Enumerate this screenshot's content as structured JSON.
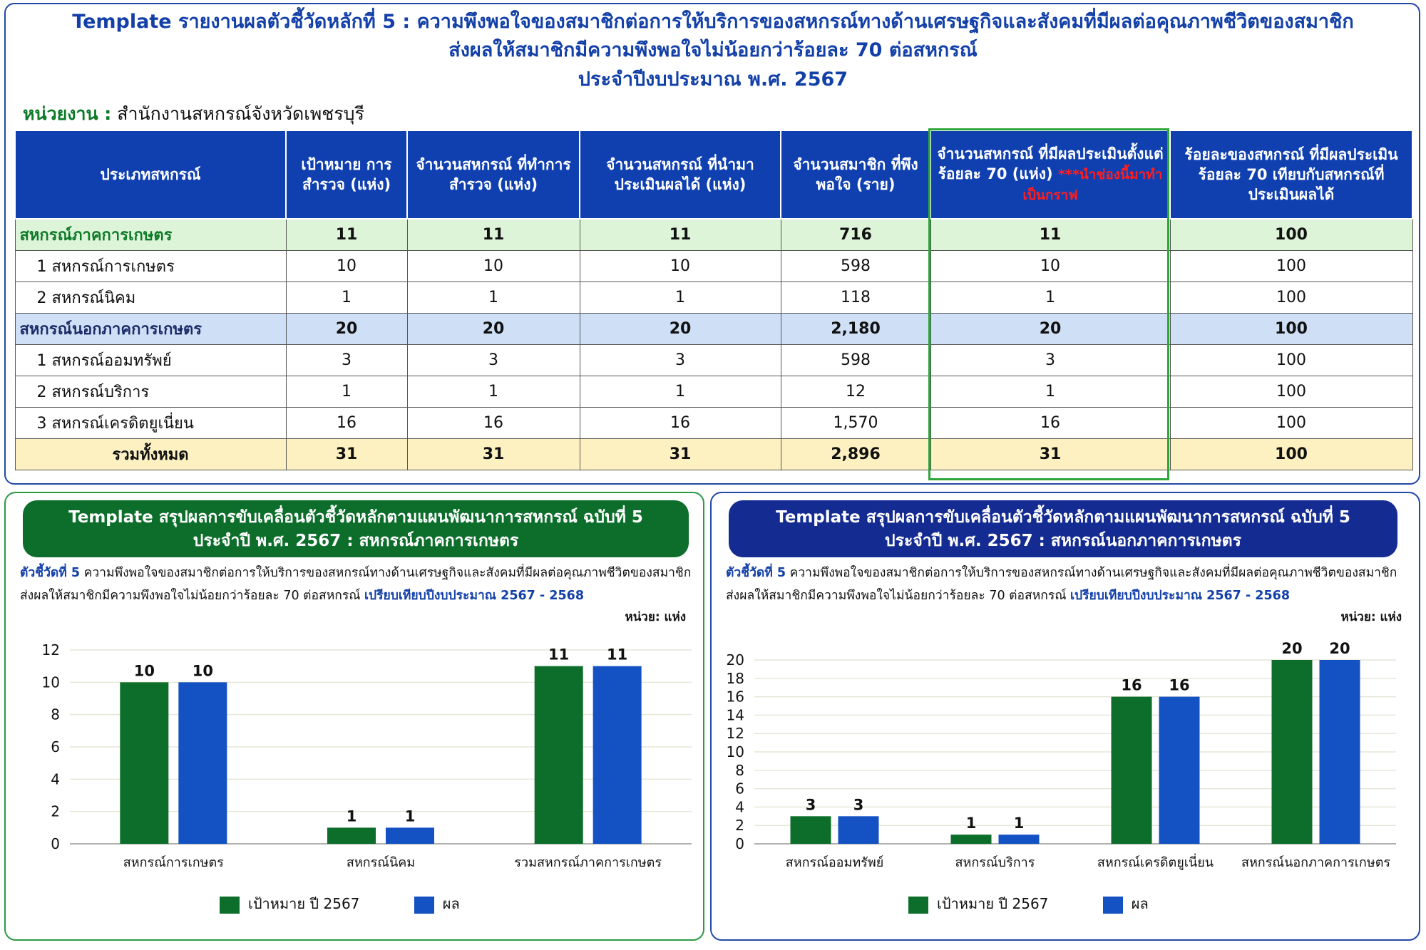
{
  "header": {
    "title_line1": "Template รายงานผลตัวชี้วัดหลักที่ 5 : ความพึงพอใจของสมาชิกต่อการให้บริการของสหกรณ์ทางด้านเศรษฐกิจและสังคมที่มีผลต่อคุณภาพชีวิตของสมาชิก",
    "title_line2": "ส่งผลให้สมาชิกมีความพึงพอใจไม่น้อยกว่าร้อยละ 70 ต่อสหกรณ์",
    "title_line3": "ประจำปีงบประมาณ พ.ศ. 2567",
    "unit_label": "หน่วยงาน :",
    "unit_value": "สำนักงานสหกรณ์จังหวัดเพชรบุรี"
  },
  "table": {
    "headers": {
      "col1": "ประเภทสหกรณ์",
      "col2": "เป้าหมาย การ สำรวจ (แห่ง)",
      "col3": "จำนวนสหกรณ์ ที่ทำการสำรวจ (แห่ง)",
      "col4": "จำนวนสหกรณ์ ที่นำมาประเมินผลได้ (แห่ง)",
      "col5": "จำนวนสมาชิก ที่พึงพอใจ (ราย)",
      "col6": "จำนวนสหกรณ์ ที่มีผลประเมินตั้งแต่ร้อยละ 70 (แห่ง)",
      "col6_note": "***นำช่องนี้มาทำเป็นกราฟ",
      "col7": "ร้อยละของสหกรณ์ ที่มีผลประเมินร้อยละ 70 เทียบกับสหกรณ์ที่ประเมินผลได้"
    },
    "rows": [
      {
        "type": "group-ag",
        "name": "สหกรณ์ภาคการเกษตร",
        "c2": "11",
        "c3": "11",
        "c4": "11",
        "c5": "716",
        "c6": "11",
        "c7": "100"
      },
      {
        "type": "item",
        "name": "1  สหกรณ์การเกษตร",
        "c2": "10",
        "c3": "10",
        "c4": "10",
        "c5": "598",
        "c6": "10",
        "c7": "100"
      },
      {
        "type": "item",
        "name": "2  สหกรณ์นิคม",
        "c2": "1",
        "c3": "1",
        "c4": "1",
        "c5": "118",
        "c6": "1",
        "c7": "100"
      },
      {
        "type": "group-nonag",
        "name": "สหกรณ์นอกภาคการเกษตร",
        "c2": "20",
        "c3": "20",
        "c4": "20",
        "c5": "2,180",
        "c6": "20",
        "c7": "100"
      },
      {
        "type": "item",
        "name": "1  สหกรณ์ออมทรัพย์",
        "c2": "3",
        "c3": "3",
        "c4": "3",
        "c5": "598",
        "c6": "3",
        "c7": "100"
      },
      {
        "type": "item",
        "name": "2  สหกรณ์บริการ",
        "c2": "1",
        "c3": "1",
        "c4": "1",
        "c5": "12",
        "c6": "1",
        "c7": "100"
      },
      {
        "type": "item",
        "name": "3  สหกรณ์เครดิตยูเนี่ยน",
        "c2": "16",
        "c3": "16",
        "c4": "16",
        "c5": "1,570",
        "c6": "16",
        "c7": "100"
      },
      {
        "type": "total",
        "name": "รวมทั้งหมด",
        "c2": "31",
        "c3": "31",
        "c4": "31",
        "c5": "2,896",
        "c6": "31",
        "c7": "100"
      }
    ]
  },
  "panels": {
    "left": {
      "banner1": "Template สรุปผลการขับเคลื่อนตัวชี้วัดหลักตามแผนพัฒนาการสหกรณ์ ฉบับที่ 5",
      "banner2": "ประจำปี พ.ศ. 2567 : สหกรณ์ภาคการเกษตร",
      "desc_key": "ตัวชี้วัดที่ 5",
      "desc_text1": " ความพึงพอใจของสมาชิกต่อการให้บริการของสหกรณ์ทางด้านเศรษฐกิจและสังคมที่มีผลต่อคุณภาพชีวิตของสมาชิก",
      "desc_text2": "ส่งผลให้สมาชิกมีความพึงพอใจไม่น้อยกว่าร้อยละ 70 ต่อสหกรณ์ ",
      "desc_key2": "เปรียบเทียบปีงบประมาณ 2567 - 2568",
      "unit": "หน่วย: แห่ง"
    },
    "right": {
      "banner1": "Template สรุปผลการขับเคลื่อนตัวชี้วัดหลักตามแผนพัฒนาการสหกรณ์ ฉบับที่ 5",
      "banner2": "ประจำปี พ.ศ. 2567 : สหกรณ์นอกภาคการเกษตร",
      "desc_key": "ตัวชี้วัดที่ 5",
      "desc_text1": " ความพึงพอใจของสมาชิกต่อการให้บริการของสหกรณ์ทางด้านเศรษฐกิจและสังคมที่มีผลต่อคุณภาพชีวิตของสมาชิก",
      "desc_text2": "ส่งผลให้สมาชิกมีความพึงพอใจไม่น้อยกว่าร้อยละ 70 ต่อสหกรณ์ ",
      "desc_key2": "เปรียบเทียบปีงบประมาณ 2567 - 2568",
      "unit": "หน่วย: แห่ง"
    }
  },
  "colors": {
    "target": "#0c6e2a",
    "result": "#1452c4",
    "header_blue": "#1040b0"
  },
  "chart_data": [
    {
      "type": "bar",
      "title": "",
      "categories": [
        "สหกรณ์การเกษตร",
        "สหกรณ์นิคม",
        "รวมสหกรณ์ภาคการเกษตร"
      ],
      "series": [
        {
          "name": "เป้าหมาย ปี 2567",
          "values": [
            10,
            1,
            11
          ]
        },
        {
          "name": "ผล",
          "values": [
            10,
            1,
            11
          ]
        }
      ],
      "ylim": [
        0,
        12
      ],
      "yticks": [
        0,
        2,
        4,
        6,
        8,
        10,
        12
      ],
      "grid": true,
      "legend": "bottom"
    },
    {
      "type": "bar",
      "title": "",
      "categories": [
        "สหกรณ์ออมทรัพย์",
        "สหกรณ์บริการ",
        "สหกรณ์เครดิตยูเนี่ยน",
        "สหกรณ์นอกภาคการเกษตร"
      ],
      "series": [
        {
          "name": "เป้าหมาย ปี 2567",
          "values": [
            3,
            1,
            16,
            20
          ]
        },
        {
          "name": "ผล",
          "values": [
            3,
            1,
            16,
            20
          ]
        }
      ],
      "ylim": [
        0,
        20
      ],
      "yticks": [
        0,
        2,
        4,
        6,
        8,
        10,
        12,
        14,
        16,
        18,
        20
      ],
      "grid": true,
      "legend": "bottom"
    }
  ]
}
